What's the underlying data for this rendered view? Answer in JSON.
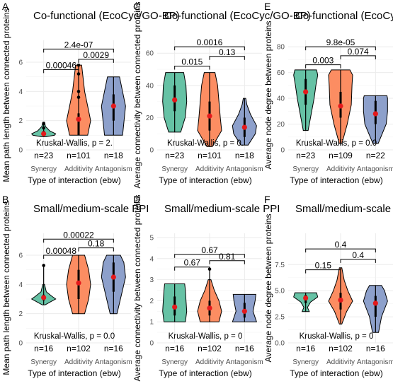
{
  "colors": {
    "synergy": "#66c2a5",
    "additive": "#fc8d62",
    "antagonism": "#8da0cb",
    "mean": "#e41a1c"
  },
  "chart_data": [
    {
      "type": "violin",
      "letter": "A",
      "title": "Co-functional (EcoCyc/GO-BP)",
      "xlabel": "Type of interaction (ebw)",
      "ylabel": "Mean path length between connected proteins",
      "categories": [
        "Synergy",
        "Additivity",
        "Antagonism"
      ],
      "ylim": [
        0,
        7.5
      ],
      "yticks": [
        0,
        2,
        4,
        6
      ],
      "counts": [
        "n=23",
        "n=101",
        "n=18"
      ],
      "kruskal_text": "Kruskal-Wallis, p = 2.",
      "comparisons": [
        {
          "pair": [
            0,
            1
          ],
          "label": "0.00046",
          "y": 5.5
        },
        {
          "pair": [
            1,
            2
          ],
          "label": "0.0029",
          "y": 6.2
        },
        {
          "pair": [
            0,
            2
          ],
          "label": "2.4e-07",
          "y": 6.9
        }
      ],
      "violins": [
        {
          "min": 0.9,
          "max": 1.9,
          "means": 1.1,
          "box": [
            1.0,
            1.3
          ],
          "outliers": [
            1.5,
            1.8
          ],
          "shape": [
            [
              0.9,
              0.2
            ],
            [
              1.0,
              0.9
            ],
            [
              1.1,
              1.0
            ],
            [
              1.3,
              0.5
            ],
            [
              1.6,
              0.15
            ],
            [
              1.9,
              0.05
            ]
          ]
        },
        {
          "min": 1.0,
          "max": 5.8,
          "means": 2.1,
          "box": [
            1.0,
            2.5
          ],
          "outliers": [
            3.6,
            4.0,
            5.2,
            5.8
          ],
          "shape": [
            [
              1.0,
              0.03
            ],
            [
              2.0,
              0.04
            ],
            [
              3.0,
              0.03
            ],
            [
              4.0,
              0.02
            ],
            [
              5.8,
              0.01
            ]
          ]
        },
        {
          "min": 1.0,
          "max": 5.0,
          "means": 3.0,
          "box": [
            2.0,
            3.8
          ],
          "outliers": [],
          "shape": [
            [
              1.0,
              0.03
            ],
            [
              3.0,
              0.04
            ],
            [
              5.0,
              0.02
            ]
          ]
        }
      ]
    },
    {
      "type": "violin",
      "letter": "C",
      "title": "Co-functional (EcoCyc/GO-BP)",
      "xlabel": "Type of interaction (ebw)",
      "ylabel": "Average connectivity between connected proteins",
      "categories": [
        "Synergy",
        "Additivity",
        "Antagonism"
      ],
      "ylim": [
        0,
        68
      ],
      "yticks": [
        0,
        20,
        40,
        60
      ],
      "counts": [
        "n=23",
        "n=101",
        "n=18"
      ],
      "kruskal_text": "Kruskal-Wallis, p = 0.",
      "comparisons": [
        {
          "pair": [
            0,
            1
          ],
          "label": "0.015",
          "y": 52
        },
        {
          "pair": [
            1,
            2
          ],
          "label": "0.13",
          "y": 58
        },
        {
          "pair": [
            0,
            2
          ],
          "label": "0.0016",
          "y": 64
        }
      ],
      "violins": [
        {
          "min": 11,
          "max": 48,
          "means": 31,
          "box": [
            24,
            40
          ],
          "outliers": [],
          "shape": [
            [
              11,
              0.4
            ],
            [
              20,
              0.7
            ],
            [
              30,
              0.8
            ],
            [
              40,
              0.75
            ],
            [
              48,
              0.6
            ]
          ]
        },
        {
          "min": 2,
          "max": 48,
          "means": 21,
          "box": [
            12,
            30
          ],
          "outliers": [],
          "shape": [
            [
              2,
              0.1
            ],
            [
              12,
              0.45
            ],
            [
              20,
              0.4
            ],
            [
              30,
              0.35
            ],
            [
              40,
              0.3
            ],
            [
              48,
              0.2
            ]
          ]
        },
        {
          "min": 3,
          "max": 32,
          "means": 14,
          "box": [
            8,
            20
          ],
          "outliers": [],
          "shape": [
            [
              3,
              0.3
            ],
            [
              10,
              0.9
            ],
            [
              15,
              1.0
            ],
            [
              22,
              0.5
            ],
            [
              28,
              0.2
            ],
            [
              32,
              0.1
            ]
          ]
        }
      ]
    },
    {
      "type": "violin",
      "letter": "E",
      "title": "Co-functional (EcoCyc/GO-BP)",
      "xlabel": "Type of interaction (ebw)",
      "ylabel": "Average node degree between proteins",
      "categories": [
        "Synergy",
        "Additivity",
        "Antagonism"
      ],
      "ylim": [
        0,
        85
      ],
      "yticks": [
        0,
        20,
        40,
        60,
        80
      ],
      "counts": [
        "n=23",
        "n=109",
        "n=22"
      ],
      "kruskal_text": "Kruskal-Wallis, p = 0.0",
      "comparisons": [
        {
          "pair": [
            0,
            1
          ],
          "label": "0.003",
          "y": 66
        },
        {
          "pair": [
            1,
            2
          ],
          "label": "0.074",
          "y": 73
        },
        {
          "pair": [
            0,
            2
          ],
          "label": "9.8e-05",
          "y": 80
        }
      ],
      "violins": [
        {
          "min": 15,
          "max": 62,
          "means": 45,
          "box": [
            35,
            55
          ],
          "outliers": [],
          "shape": [
            [
              15,
              0.2
            ],
            [
              30,
              0.5
            ],
            [
              40,
              0.7
            ],
            [
              50,
              0.85
            ],
            [
              58,
              1.0
            ],
            [
              62,
              0.9
            ]
          ]
        },
        {
          "min": 5,
          "max": 62,
          "means": 34,
          "box": [
            25,
            45
          ],
          "outliers": [],
          "shape": [
            [
              5,
              0.1
            ],
            [
              20,
              0.5
            ],
            [
              35,
              0.8
            ],
            [
              50,
              0.85
            ],
            [
              58,
              0.9
            ],
            [
              62,
              0.7
            ]
          ]
        },
        {
          "min": 5,
          "max": 42,
          "means": 28,
          "box": [
            20,
            38
          ],
          "outliers": [],
          "shape": [
            [
              5,
              0.2
            ],
            [
              20,
              0.8
            ],
            [
              30,
              0.9
            ],
            [
              40,
              0.9
            ],
            [
              42,
              0.85
            ]
          ]
        }
      ]
    },
    {
      "type": "violin",
      "letter": "B",
      "title": "Small/medium-scale PPI",
      "xlabel": "Type of interaction (ebw)",
      "ylabel": "Mean path length between connected proteins",
      "categories": [
        "Synergy",
        "Additivity",
        "Antagonism"
      ],
      "ylim": [
        0,
        7.5
      ],
      "yticks": [
        0,
        2,
        4,
        6
      ],
      "counts": [
        "n=16",
        "n=102",
        "n=16"
      ],
      "kruskal_text": "Kruskal-Wallis, p = 0.0",
      "comparisons": [
        {
          "pair": [
            0,
            1
          ],
          "label": "0.00048",
          "y": 6.0
        },
        {
          "pair": [
            1,
            2
          ],
          "label": "0.18",
          "y": 6.5
        },
        {
          "pair": [
            0,
            2
          ],
          "label": "0.00022",
          "y": 7.1
        }
      ],
      "violins": [
        {
          "min": 2.6,
          "max": 5.3,
          "means": 3.1,
          "box": [
            2.9,
            3.3
          ],
          "outliers": [
            5.3
          ],
          "shape": [
            [
              2.6,
              0.1
            ],
            [
              2.8,
              0.5
            ],
            [
              3.0,
              0.9
            ],
            [
              3.2,
              0.6
            ],
            [
              3.5,
              0.2
            ],
            [
              4.0,
              0.05
            ]
          ]
        },
        {
          "min": 2.0,
          "max": 6.0,
          "means": 4.1,
          "box": [
            3.0,
            5.0
          ],
          "outliers": [],
          "shape": [
            [
              2.0,
              0.03
            ],
            [
              3.0,
              0.05
            ],
            [
              4.0,
              0.06
            ],
            [
              5.0,
              0.05
            ],
            [
              6.0,
              0.03
            ]
          ]
        },
        {
          "min": 2.0,
          "max": 6.0,
          "means": 4.5,
          "box": [
            3.5,
            5.5
          ],
          "outliers": [],
          "shape": [
            [
              2.0,
              0.02
            ],
            [
              3.5,
              0.05
            ],
            [
              4.5,
              0.07
            ],
            [
              5.5,
              0.06
            ],
            [
              6.0,
              0.04
            ]
          ]
        }
      ]
    },
    {
      "type": "violin",
      "letter": "D",
      "title": "Small/medium-scale PPI",
      "xlabel": "Type of interaction (ebw)",
      "ylabel": "Average connectivity between connected proteins",
      "categories": [
        "Synergy",
        "Additivity",
        "Antagonism"
      ],
      "ylim": [
        0,
        5.2
      ],
      "yticks": [
        0,
        1,
        2,
        3,
        4,
        5
      ],
      "counts": [
        "n=16",
        "n=102",
        "n=16"
      ],
      "kruskal_text": "Kruskal-Wallis, p = 0",
      "comparisons": [
        {
          "pair": [
            0,
            1
          ],
          "label": "0.67",
          "y": 3.6
        },
        {
          "pair": [
            1,
            2
          ],
          "label": "0.81",
          "y": 3.9
        },
        {
          "pair": [
            0,
            2
          ],
          "label": "0.67",
          "y": 4.2
        }
      ],
      "violins": [
        {
          "min": 1.0,
          "max": 2.8,
          "means": 1.7,
          "box": [
            1.3,
            2.2
          ],
          "outliers": [],
          "shape": [
            [
              1.0,
              0.8
            ],
            [
              1.5,
              0.9
            ],
            [
              2.0,
              0.85
            ],
            [
              2.5,
              0.8
            ],
            [
              2.8,
              0.75
            ]
          ]
        },
        {
          "min": 1.0,
          "max": 3.5,
          "means": 1.65,
          "box": [
            1.3,
            2.0
          ],
          "outliers": [
            3.5
          ],
          "shape": [
            [
              1.0,
              0.7
            ],
            [
              1.5,
              0.9
            ],
            [
              2.0,
              0.7
            ],
            [
              2.5,
              0.35
            ],
            [
              3.0,
              0.1
            ]
          ]
        },
        {
          "min": 1.0,
          "max": 2.3,
          "means": 1.5,
          "box": [
            1.2,
            1.9
          ],
          "outliers": [],
          "shape": [
            [
              1.0,
              0.85
            ],
            [
              1.5,
              0.6
            ],
            [
              2.0,
              0.75
            ],
            [
              2.3,
              0.8
            ]
          ]
        }
      ]
    },
    {
      "type": "violin",
      "letter": "F",
      "title": "Small/medium-scale PPI",
      "xlabel": "Type of interaction (ebw)",
      "ylabel": "Average node degree between proteins",
      "categories": [
        "Synergy",
        "Additivity",
        "Antagonism"
      ],
      "ylim": [
        0,
        10.5
      ],
      "yticks": [
        0,
        2.5,
        5,
        7.5
      ],
      "yticklabels": [
        "0.0",
        "2.5",
        "5.0",
        "7.5"
      ],
      "counts": [
        "n=16",
        "n=102",
        "n=16"
      ],
      "kruskal_text": "Kruskal-Wallis, p = 0",
      "comparisons": [
        {
          "pair": [
            0,
            1
          ],
          "label": "0.15",
          "y": 7.0
        },
        {
          "pair": [
            1,
            2
          ],
          "label": "0.4",
          "y": 8.0
        },
        {
          "pair": [
            0,
            2
          ],
          "label": "0.4",
          "y": 9.0
        }
      ],
      "violins": [
        {
          "min": 3.0,
          "max": 4.8,
          "means": 4.3,
          "box": [
            3.8,
            4.6
          ],
          "outliers": [],
          "shape": [
            [
              3.0,
              0.3
            ],
            [
              3.4,
              0.15
            ],
            [
              3.9,
              0.4
            ],
            [
              4.4,
              1.0
            ],
            [
              4.8,
              0.9
            ]
          ]
        },
        {
          "min": 1.8,
          "max": 7.2,
          "means": 4.1,
          "box": [
            3.2,
            4.8
          ],
          "outliers": [],
          "shape": [
            [
              1.8,
              0.05
            ],
            [
              3.0,
              0.25
            ],
            [
              4.0,
              0.5
            ],
            [
              5.0,
              0.3
            ],
            [
              6.0,
              0.15
            ],
            [
              7.2,
              0.05
            ]
          ]
        },
        {
          "min": 1.0,
          "max": 5.5,
          "means": 3.8,
          "box": [
            2.5,
            4.5
          ],
          "outliers": [],
          "shape": [
            [
              1.0,
              0.05
            ],
            [
              2.5,
              0.1
            ],
            [
              4.0,
              0.2
            ],
            [
              5.0,
              0.15
            ],
            [
              5.5,
              0.1
            ]
          ]
        }
      ]
    }
  ]
}
